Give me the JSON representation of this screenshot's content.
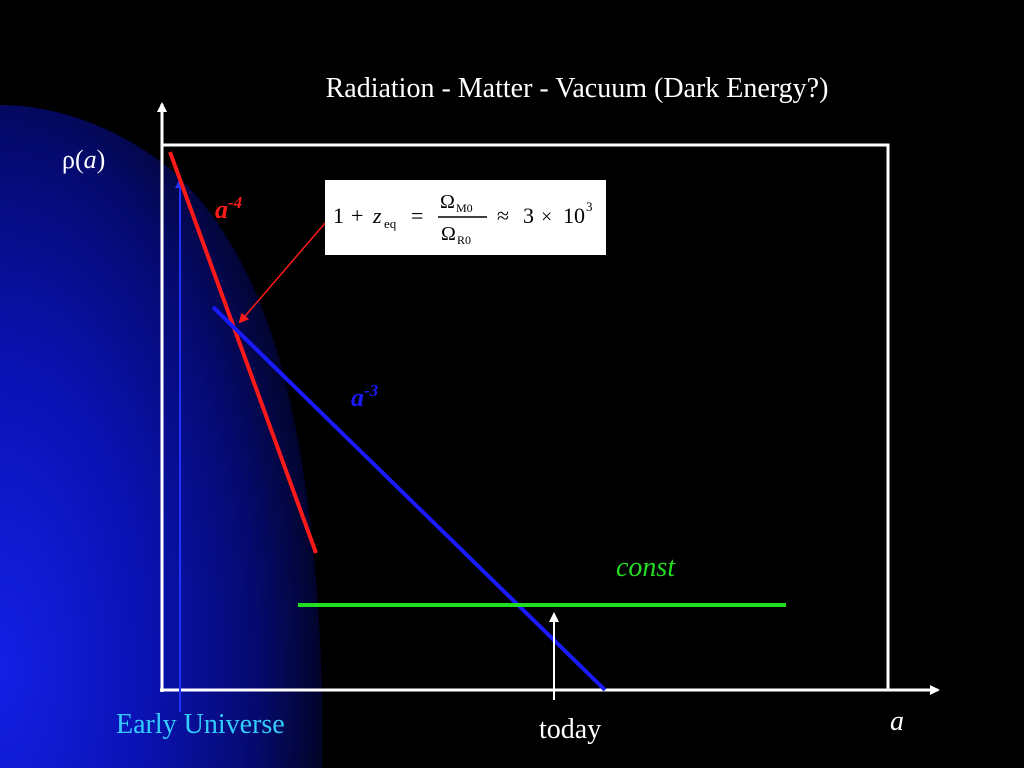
{
  "title": "Radiation - Matter - Vacuum (Dark Energy?)",
  "y_axis_label": {
    "rho": "ρ(",
    "var": "a",
    "close": ")"
  },
  "x_axis_label": "a",
  "curves": {
    "radiation": {
      "base": "a",
      "exponent": "-4",
      "color": "#ff1a1a"
    },
    "matter": {
      "base": "a",
      "exponent": "-3",
      "color": "#1a1aff"
    },
    "vacuum": {
      "label": "const",
      "color": "#22dd22"
    }
  },
  "annotations": {
    "early_universe": "Early Universe",
    "today": "today"
  },
  "equation": {
    "lhs_one": "1",
    "plus": "+",
    "z": "z",
    "z_sub": "eq",
    "equals": "=",
    "num_omega": "Ω",
    "num_sub": "M0",
    "den_omega": "Ω",
    "den_sub": "R0",
    "approx": "≈",
    "coef": "3",
    "times": "×",
    "base": "10",
    "exp": "3"
  },
  "colors": {
    "background": "#000000",
    "gradient_blue": "#0a14c8",
    "frame": "#ffffff",
    "early_universe_text": "#33ccff",
    "arrow_red": "#ff1a1a"
  }
}
